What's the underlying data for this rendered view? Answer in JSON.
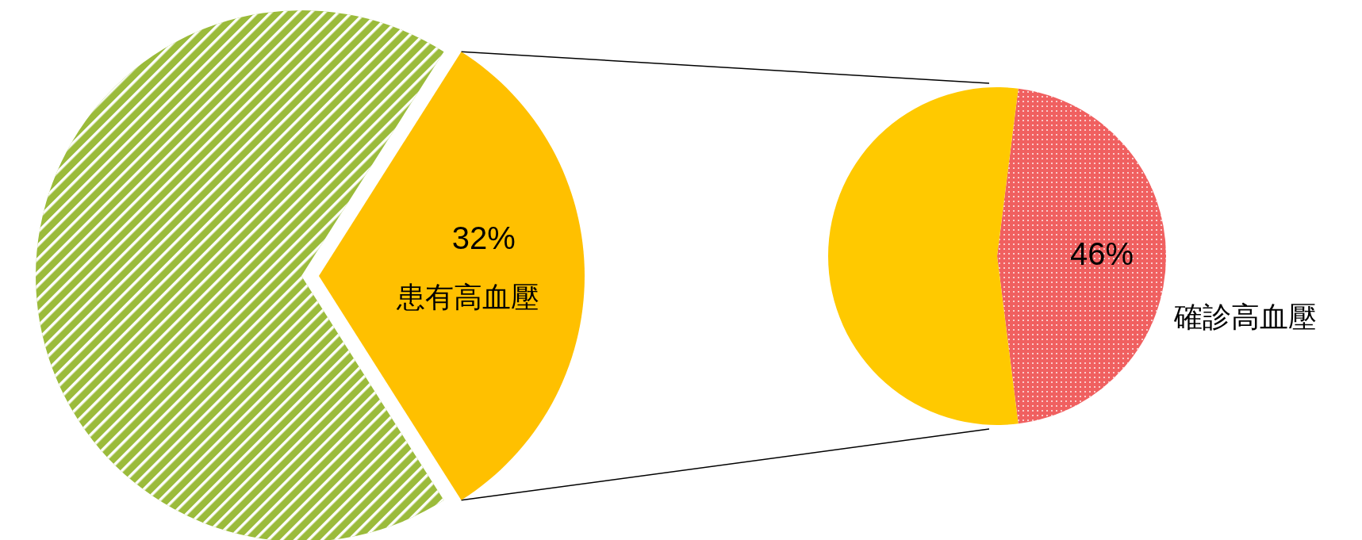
{
  "chart_data": [
    {
      "type": "pie",
      "categories": [
        null,
        "患有高血壓"
      ],
      "values": [
        68,
        32
      ],
      "colors": [
        "#9bbb3b",
        "#ffc000"
      ],
      "value_labels": [
        null,
        "32%"
      ]
    },
    {
      "type": "pie",
      "categories": [
        "確診高血壓",
        null
      ],
      "values": [
        46,
        54
      ],
      "colors": [
        "#f06060",
        "#ffc900"
      ],
      "value_labels": [
        "46%",
        null
      ]
    }
  ]
}
